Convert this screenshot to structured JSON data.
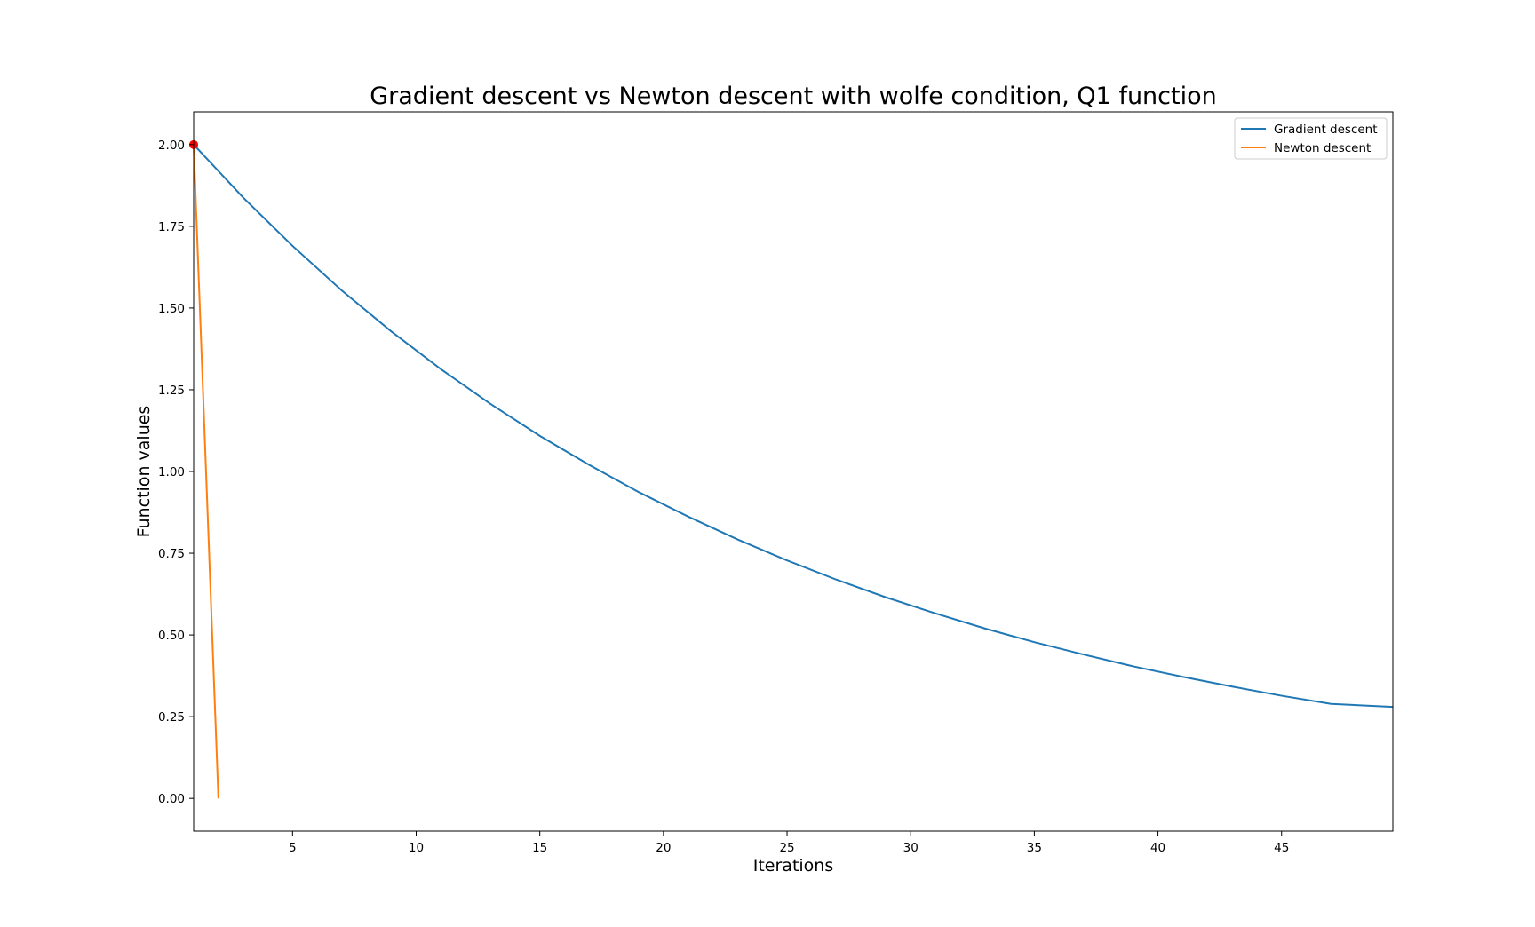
{
  "chart_data": {
    "type": "line",
    "title": "Gradient descent vs Newton descent with wolfe condition, Q1 function",
    "xlabel": "Iterations",
    "ylabel": "Function values",
    "xlim": [
      1,
      49.5
    ],
    "ylim": [
      -0.1,
      2.1
    ],
    "xticks": [
      5,
      10,
      15,
      20,
      25,
      30,
      35,
      40,
      45
    ],
    "xtick_labels": [
      "5",
      "10",
      "15",
      "20",
      "25",
      "30",
      "35",
      "40",
      "45"
    ],
    "yticks": [
      0,
      0.25,
      0.5,
      0.75,
      1.0,
      1.25,
      1.5,
      1.75,
      2.0
    ],
    "ytick_labels": [
      "0.00",
      "0.25",
      "0.50",
      "0.75",
      "1.00",
      "1.25",
      "1.50",
      "1.75",
      "2.00"
    ],
    "grid": false,
    "legend_placement": "top-right",
    "series": [
      {
        "name": "Gradient descent",
        "color": "#1f77b4",
        "x": [
          1,
          3,
          5,
          7,
          9,
          11,
          13,
          15,
          17,
          19,
          21,
          23,
          25,
          27,
          29,
          31,
          33,
          35,
          37,
          39,
          41,
          43,
          45,
          47,
          49.5
        ],
        "y": [
          2.0,
          1.838,
          1.69,
          1.553,
          1.428,
          1.313,
          1.207,
          1.109,
          1.02,
          0.937,
          0.862,
          0.792,
          0.728,
          0.669,
          0.615,
          0.566,
          0.52,
          0.478,
          0.44,
          0.404,
          0.372,
          0.342,
          0.314,
          0.289,
          0.28
        ]
      },
      {
        "name": "Newton descent",
        "color": "#ff7f0e",
        "x": [
          1,
          2
        ],
        "y": [
          2.0,
          0.0
        ]
      }
    ],
    "marker": {
      "x": 1,
      "y": 2.0,
      "color": "#ff0000"
    }
  }
}
